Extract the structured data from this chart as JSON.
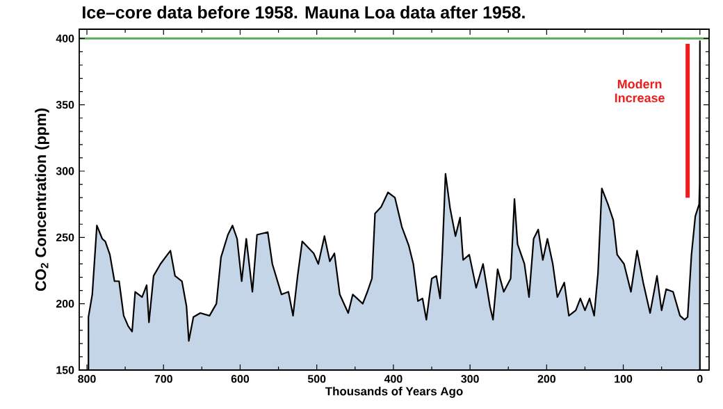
{
  "chart_data": {
    "type": "area",
    "title": "Ice–core data before 1958. Mauna Loa data after 1958.",
    "xlabel": "Thousands of Years Ago",
    "ylabel": "CO$_{2}$ Concentration (ppm)",
    "xlim": [
      810,
      -12
    ],
    "ylim": [
      150,
      407
    ],
    "xticks": [
      800,
      700,
      600,
      500,
      400,
      300,
      200,
      100,
      0
    ],
    "yticks": [
      150,
      200,
      250,
      300,
      350,
      400
    ],
    "ref_lines": [
      {
        "axis": "y",
        "value": 400,
        "color": "#5aa85a"
      }
    ],
    "series": [
      {
        "color": "#c5d5e8",
        "x": [
          798,
          793,
          787,
          780,
          776,
          770,
          764,
          758,
          752,
          746,
          741,
          737,
          728,
          722,
          719,
          713,
          704,
          695,
          691,
          685,
          676,
          670,
          667,
          661,
          652,
          640,
          631,
          625,
          616,
          610,
          604,
          598,
          592,
          584,
          578,
          564,
          558,
          546,
          537,
          531,
          525,
          519,
          504,
          498,
          490,
          483,
          477,
          470,
          459,
          453,
          440,
          434,
          428,
          424,
          416,
          407,
          398,
          389,
          380,
          374,
          368,
          362,
          357,
          350,
          344,
          339,
          336,
          332,
          326,
          319,
          313,
          309,
          301,
          292,
          283,
          274,
          270,
          264,
          256,
          247,
          242,
          238,
          229,
          223,
          217,
          211,
          205,
          199,
          192,
          186,
          177,
          171,
          162,
          156,
          150,
          144,
          138,
          133,
          128,
          120,
          113,
          108,
          99,
          90,
          82,
          74,
          65,
          56,
          50,
          44,
          35,
          26,
          20,
          16,
          11,
          6,
          1,
          0.3,
          0
        ],
        "values": [
          190,
          207,
          259,
          249,
          247,
          237,
          217,
          217,
          191,
          183,
          179,
          209,
          205,
          214,
          186,
          221,
          230,
          237,
          240,
          221,
          217,
          198,
          172,
          190,
          193,
          191,
          200,
          235,
          252,
          259,
          249,
          217,
          249,
          209,
          252,
          254,
          230,
          207,
          209,
          191,
          221,
          247,
          238,
          230,
          251,
          232,
          238,
          207,
          193,
          207,
          200,
          209,
          219,
          268,
          273,
          284,
          280,
          258,
          244,
          230,
          202,
          204,
          188,
          219,
          221,
          204,
          240,
          298,
          272,
          251,
          265,
          233,
          237,
          212,
          230,
          198,
          188,
          226,
          209,
          219,
          279,
          245,
          230,
          205,
          249,
          256,
          233,
          249,
          230,
          205,
          216,
          191,
          195,
          204,
          195,
          204,
          191,
          223,
          287,
          275,
          263,
          237,
          230,
          209,
          240,
          216,
          193,
          221,
          195,
          211,
          209,
          191,
          188,
          190,
          237,
          266,
          275,
          290,
          398
        ]
      },
      {
        "type": "line",
        "name": "Modern Increase",
        "color": "#ee1c1c",
        "x": [
          16,
          16
        ],
        "values": [
          280,
          396
        ]
      }
    ]
  }
}
